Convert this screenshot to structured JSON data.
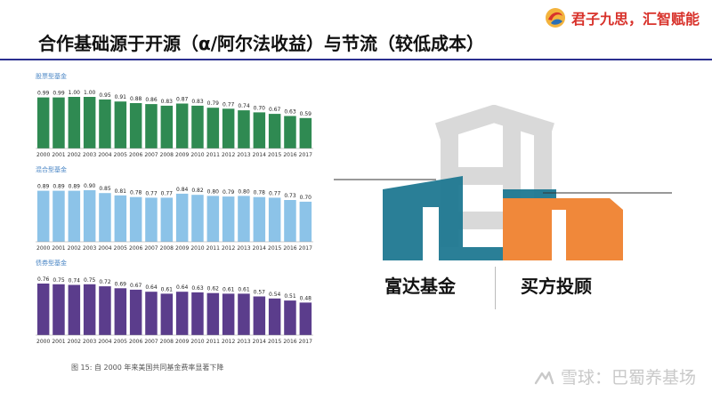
{
  "logo": {
    "text": "君子九思，汇智赋能",
    "icon": "logo-swirl-icon"
  },
  "slide_title": "合作基础源于开源（α/阿尔法收益）与节流（较低成本）",
  "chart_caption": "图 15: 自 2000 年来美国共同基金费率显著下降",
  "labels": {
    "left": "富达基金",
    "right": "买方投顾"
  },
  "watermark": {
    "text": "雪球：巴蜀养基场",
    "icon": "snowball-icon"
  },
  "colors": {
    "equity": "#2f8a52",
    "hybrid": "#8cc3e8",
    "bond": "#5b3d8c",
    "teal": "#1f7891",
    "orange": "#f0883a",
    "gray": "#d9d9d9"
  },
  "chart_data": [
    {
      "type": "bar",
      "title": "股票型基金",
      "categories": [
        "2000",
        "2001",
        "2002",
        "2003",
        "2004",
        "2005",
        "2006",
        "2007",
        "2008",
        "2009",
        "2010",
        "2011",
        "2012",
        "2013",
        "2014",
        "2015",
        "2016",
        "2017"
      ],
      "values": [
        0.99,
        0.99,
        1.0,
        1.0,
        0.95,
        0.91,
        0.88,
        0.86,
        0.83,
        0.87,
        0.83,
        0.79,
        0.77,
        0.74,
        0.7,
        0.67,
        0.63,
        0.59
      ],
      "color": "#2f8a52",
      "ylim": [
        0,
        1.0
      ],
      "grid": false
    },
    {
      "type": "bar",
      "title": "混合型基金",
      "categories": [
        "2000",
        "2001",
        "2002",
        "2003",
        "2004",
        "2005",
        "2006",
        "2007",
        "2008",
        "2009",
        "2010",
        "2011",
        "2012",
        "2013",
        "2014",
        "2015",
        "2016",
        "2017"
      ],
      "values": [
        0.89,
        0.89,
        0.89,
        0.9,
        0.85,
        0.81,
        0.78,
        0.77,
        0.77,
        0.84,
        0.82,
        0.8,
        0.79,
        0.8,
        0.78,
        0.77,
        0.73,
        0.7
      ],
      "color": "#8cc3e8",
      "ylim": [
        0,
        0.9
      ],
      "grid": false
    },
    {
      "type": "bar",
      "title": "债券型基金",
      "categories": [
        "2000",
        "2001",
        "2002",
        "2003",
        "2004",
        "2005",
        "2006",
        "2007",
        "2008",
        "2009",
        "2010",
        "2011",
        "2012",
        "2013",
        "2014",
        "2015",
        "2016",
        "2017"
      ],
      "values": [
        0.76,
        0.75,
        0.74,
        0.75,
        0.72,
        0.69,
        0.67,
        0.64,
        0.61,
        0.64,
        0.63,
        0.62,
        0.61,
        0.61,
        0.57,
        0.54,
        0.51,
        0.48
      ],
      "color": "#5b3d8c",
      "ylim": [
        0,
        0.76
      ],
      "grid": false
    }
  ]
}
